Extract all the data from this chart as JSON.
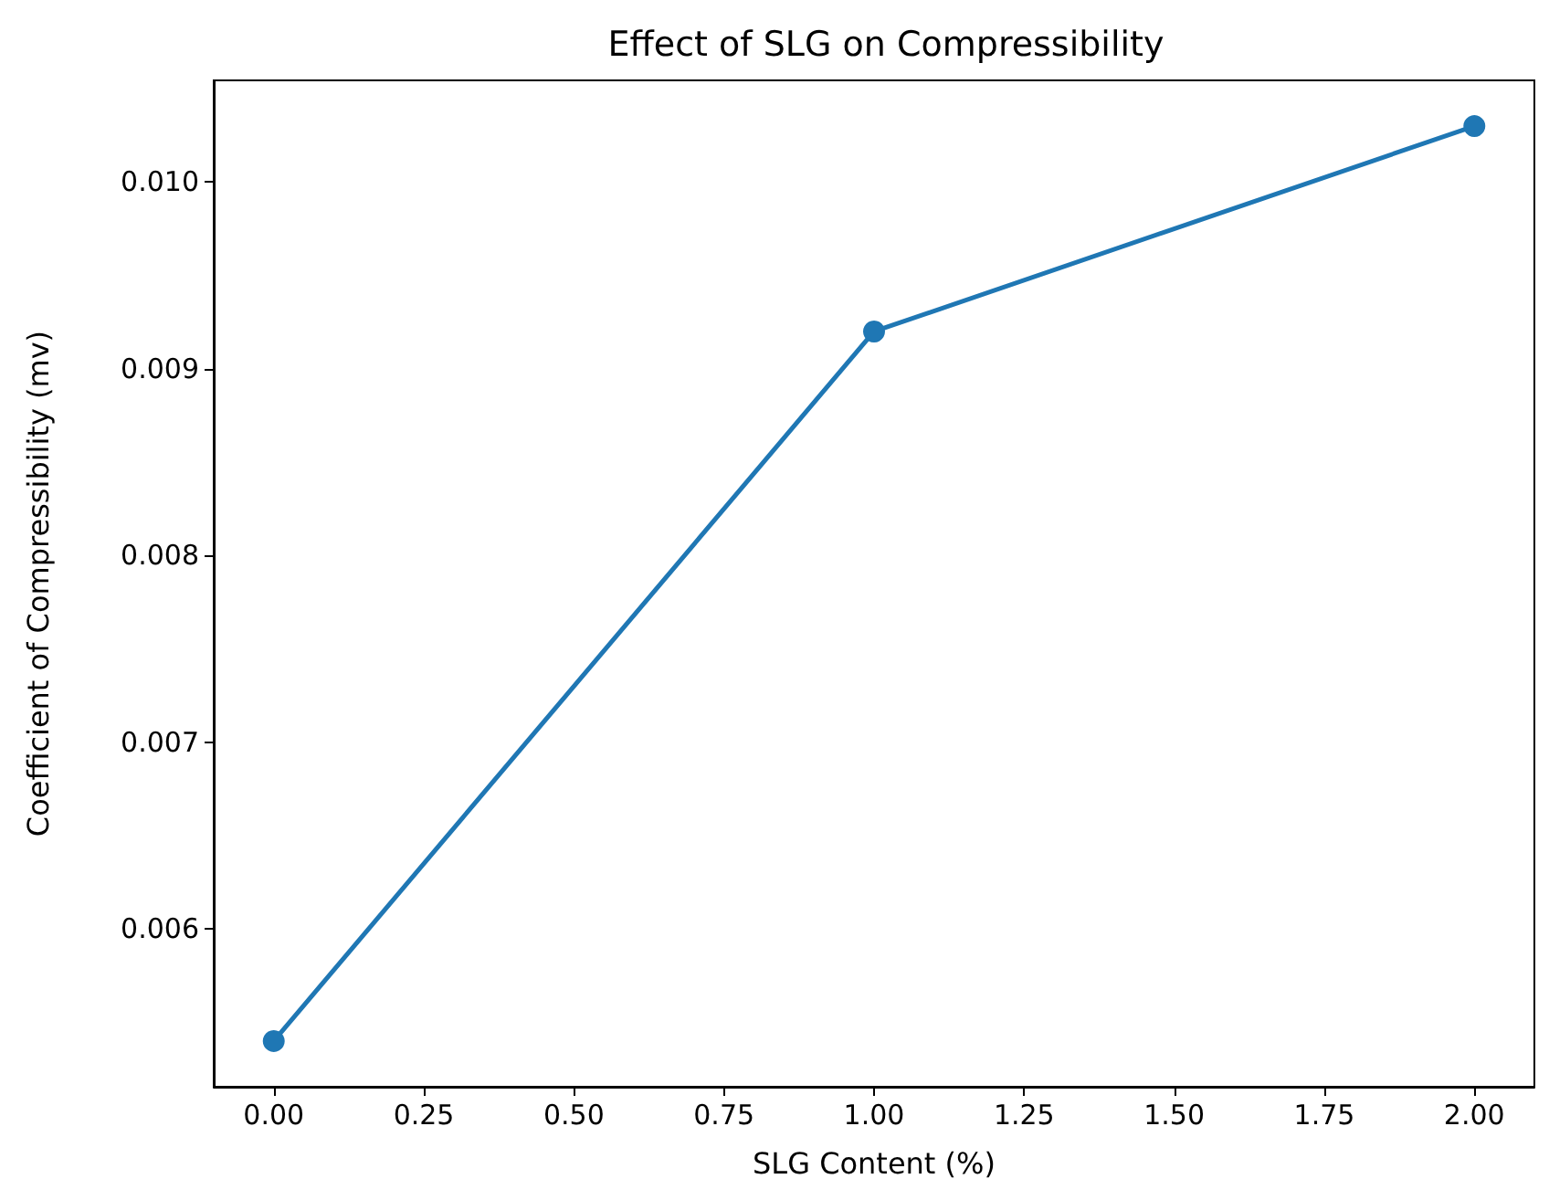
{
  "chart_data": {
    "type": "line",
    "title": "Effect of SLG on Compressibility",
    "xlabel": "SLG Content (%)",
    "ylabel": "Coefficient of Compressibility (mv)",
    "x": [
      0,
      1,
      2
    ],
    "series": [
      {
        "color": "#1f77b4",
        "values": [
          0.0054,
          0.0092,
          0.0103
        ]
      }
    ],
    "marker": "circle",
    "line_style": "solid",
    "grid": false,
    "xlim": [
      -0.1,
      2.1
    ],
    "xticks": [
      {
        "value": 0,
        "label": "0.00"
      },
      {
        "value": 0.25,
        "label": "0.25"
      },
      {
        "value": 0.5,
        "label": "0.50"
      },
      {
        "value": 0.75,
        "label": "0.75"
      },
      {
        "value": 1,
        "label": "1.00"
      },
      {
        "value": 1.25,
        "label": "1.25"
      },
      {
        "value": 1.5,
        "label": "1.50"
      },
      {
        "value": 1.75,
        "label": "1.75"
      },
      {
        "value": 2,
        "label": "2.00"
      }
    ],
    "ylim": [
      0.005155,
      0.010545
    ],
    "yticks": [
      {
        "value": 0.006,
        "label": "0.006"
      },
      {
        "value": 0.007,
        "label": "0.007"
      },
      {
        "value": 0.008,
        "label": "0.008"
      },
      {
        "value": 0.009,
        "label": "0.009"
      },
      {
        "value": 0.01,
        "label": "0.010"
      }
    ]
  }
}
